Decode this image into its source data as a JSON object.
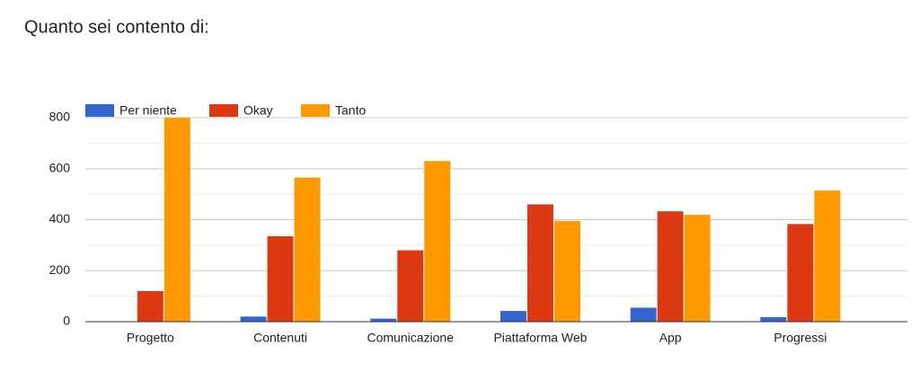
{
  "chart_data": {
    "type": "bar",
    "title": "Quanto sei contento di:",
    "categories": [
      "Progetto",
      "Contenuti",
      "Comunicazione",
      "Piattaforma Web",
      "App",
      "Progressi"
    ],
    "series": [
      {
        "name": "Per niente",
        "color": "#3366cc",
        "values": [
          0,
          20,
          12,
          42,
          55,
          18
        ]
      },
      {
        "name": "Okay",
        "color": "#dc3912",
        "values": [
          120,
          335,
          280,
          460,
          433,
          383
        ]
      },
      {
        "name": "Tanto",
        "color": "#ff9900",
        "values": [
          800,
          565,
          630,
          395,
          419,
          514
        ]
      }
    ],
    "ylim": [
      0,
      800
    ],
    "yticks": [
      0,
      200,
      400,
      600,
      800
    ],
    "minor_yticks": [
      100,
      300,
      500,
      700
    ],
    "grid": true,
    "legend": "top-left"
  }
}
